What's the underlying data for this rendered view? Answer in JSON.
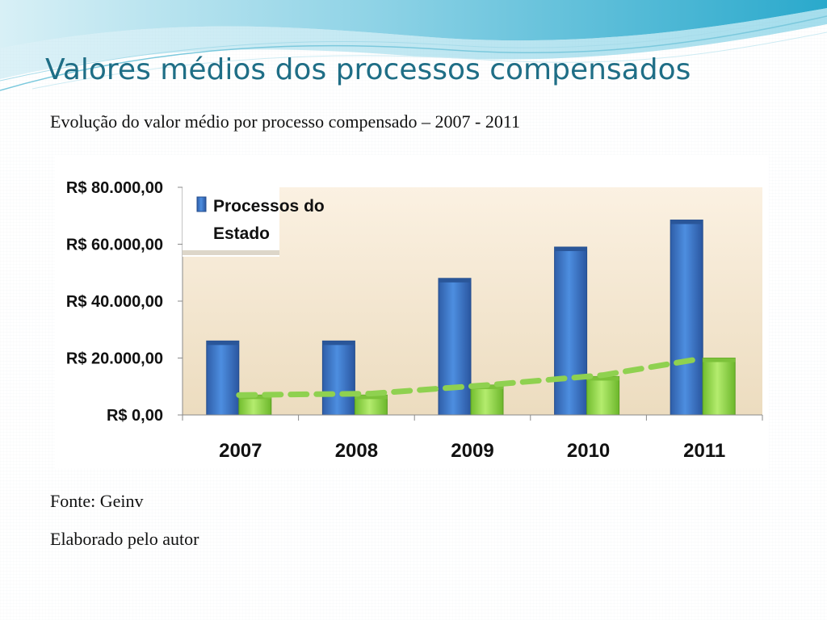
{
  "slide": {
    "title": "Valores médios dos processos compensados",
    "subtitle": "Evolução do valor médio por processo compensado – 2007 - 2011",
    "source": "Fonte: Geinv",
    "author_note": "Elaborado pelo autor"
  },
  "colors": {
    "title": "#1f6e86",
    "series_estado": "#3a78c8",
    "series_secondary": "#96d64a",
    "trendline": "#8fd150",
    "plot_bg_top": "#fbf1e2",
    "plot_bg_bottom": "#ecdcbf"
  },
  "chart_data": {
    "type": "bar",
    "title": "",
    "xlabel": "",
    "ylabel": "",
    "categories": [
      "2007",
      "2008",
      "2009",
      "2010",
      "2011"
    ],
    "ylim": [
      0,
      80000
    ],
    "yticks": [
      0,
      20000,
      40000,
      60000,
      80000
    ],
    "ytick_labels": [
      "R$ 0,00",
      "R$ 20.000,00",
      "R$ 40.000,00",
      "R$ 60.000,00",
      "R$ 80.000,00"
    ],
    "series": [
      {
        "name": "Processos do Estado",
        "values": [
          26000,
          26000,
          48000,
          59000,
          68500
        ]
      },
      {
        "values": [
          7000,
          7000,
          10500,
          13500,
          20000
        ]
      }
    ],
    "trendline": {
      "style": "dashed",
      "based_on_series": 1,
      "values": [
        7000,
        7500,
        10500,
        14000,
        19500
      ]
    },
    "legend": {
      "position": "top-left",
      "entries": [
        "Processos do",
        "Estado"
      ]
    },
    "grid": false
  }
}
